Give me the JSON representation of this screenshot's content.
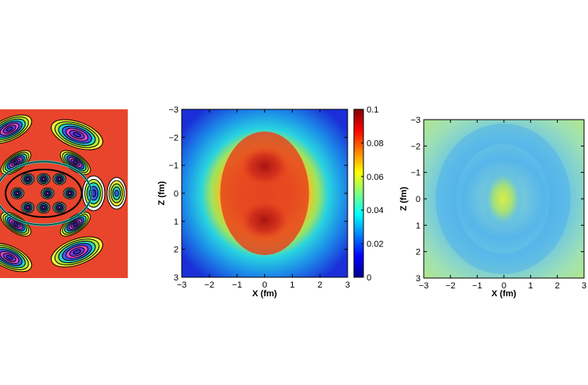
{
  "chart_data": [
    {
      "type": "heatmap",
      "panel": "left",
      "style": "filled-contour",
      "background_color": "#e8452c",
      "description_shape": "symmetric multi-lobe contour pattern",
      "xlabel": "",
      "ylabel": ""
    },
    {
      "type": "heatmap",
      "panel": "middle",
      "xlabel": "X (fm)",
      "ylabel": "Z (fm)",
      "xlim": [
        -3,
        3
      ],
      "ylim": [
        -3,
        3
      ],
      "y_reversed": true,
      "xticks": [
        "−3",
        "−2",
        "−1",
        "0",
        "1",
        "2",
        "3"
      ],
      "yticks": [
        "−3",
        "−2",
        "−1",
        "0",
        "1",
        "2",
        "3"
      ],
      "peaks": [
        {
          "x": 0,
          "z": -1,
          "value": 0.1
        },
        {
          "x": 0,
          "z": 1,
          "value": 0.1
        }
      ],
      "colorbar": {
        "min": 0,
        "max": 0.1,
        "ticks": [
          "0",
          "0.02",
          "0.04",
          "0.06",
          "0.08",
          "0.1"
        ],
        "colormap": "jet"
      }
    },
    {
      "type": "heatmap",
      "panel": "right",
      "xlabel": "X (fm)",
      "ylabel": "Z (fm)",
      "xlim": [
        -3,
        3
      ],
      "ylim": [
        -3,
        3
      ],
      "y_reversed": true,
      "xticks": [
        "−3",
        "−2",
        "−1",
        "0",
        "1",
        "2",
        "3"
      ],
      "yticks": [
        "−3",
        "−2",
        "−1",
        "0",
        "1",
        "2",
        "3"
      ],
      "center_value_color": "#c8e84a",
      "ring_color": "#5bb3e8",
      "background_color": "#a8e0a0"
    }
  ]
}
